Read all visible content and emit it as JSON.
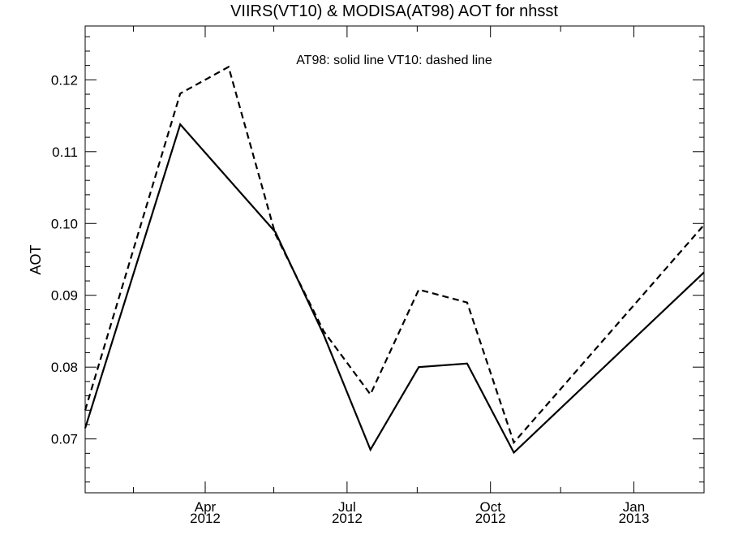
{
  "chart_data": {
    "type": "line",
    "title": "VIIRS(VT10) & MODISA(AT98)  AOT for nhsst",
    "annotation": "AT98: solid line   VT10: dashed line",
    "xlabel": "",
    "ylabel": "AOT",
    "x_range": [
      "2012-01-15",
      "2013-02-15"
    ],
    "ylim": [
      0.0625,
      0.1275
    ],
    "yticks": [
      "0.07",
      "0.08",
      "0.09",
      "0.10",
      "0.11",
      "0.12"
    ],
    "yticks_values": [
      0.07,
      0.08,
      0.09,
      0.1,
      0.11,
      0.12
    ],
    "xticks": [
      {
        "date": "2012-04-01",
        "month": "Apr",
        "year": "2012"
      },
      {
        "date": "2012-07-01",
        "month": "Jul",
        "year": "2012"
      },
      {
        "date": "2012-10-01",
        "month": "Oct",
        "year": "2012"
      },
      {
        "date": "2013-01-01",
        "month": "Jan",
        "year": "2013"
      }
    ],
    "minor_xticks": [
      "2012-02-15",
      "2012-05-15",
      "2012-08-15",
      "2012-11-15"
    ],
    "series": [
      {
        "name": "AT98",
        "style": "solid",
        "color": "#000000",
        "x": [
          "2012-01-15",
          "2012-03-16",
          "2012-05-16",
          "2012-06-16",
          "2012-07-16",
          "2012-08-16",
          "2012-09-16",
          "2012-10-16",
          "2013-02-15"
        ],
        "y": [
          0.0715,
          0.1138,
          0.0988,
          0.0845,
          0.0685,
          0.08,
          0.0805,
          0.0681,
          0.0932
        ]
      },
      {
        "name": "VT10",
        "style": "dashed",
        "color": "#000000",
        "x": [
          "2012-01-15",
          "2012-03-16",
          "2012-04-16",
          "2012-05-16",
          "2012-06-16",
          "2012-07-16",
          "2012-08-16",
          "2012-09-16",
          "2012-10-16",
          "2013-02-15"
        ],
        "y": [
          0.074,
          0.1181,
          0.1218,
          0.0985,
          0.085,
          0.0762,
          0.0908,
          0.089,
          0.0695,
          0.0998
        ]
      }
    ]
  }
}
